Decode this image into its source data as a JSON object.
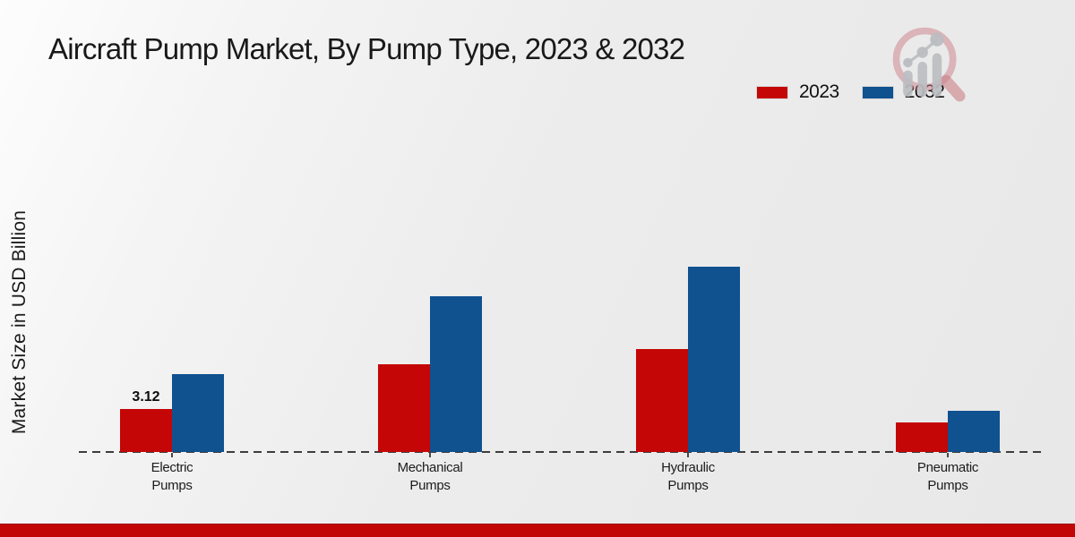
{
  "title": "Aircraft Pump Market, By Pump Type, 2023 & 2032",
  "y_axis_label": "Market Size in USD Billion",
  "legend": {
    "items": [
      {
        "label": "2023",
        "color": "#c40606"
      },
      {
        "label": "2032",
        "color": "#10518f"
      }
    ],
    "position": "top-right"
  },
  "icons": {
    "logo": "magnifier-bar-chart-watermark-logo"
  },
  "colors": {
    "series_2023": "#c40606",
    "series_2032": "#10518f",
    "baseline": "#3d3d3d",
    "background": "#ececec",
    "footer_bar": "#c20606"
  },
  "footer": {
    "bar_color": "#c20606"
  },
  "chart_data": {
    "type": "bar",
    "title": "Aircraft Pump Market, By Pump Type, 2023 & 2032",
    "xlabel": "",
    "ylabel": "Market Size in USD Billion",
    "categories": [
      "Electric Pumps",
      "Mechanical Pumps",
      "Hydraulic Pumps",
      "Pneumatic Pumps"
    ],
    "series": [
      {
        "name": "2023",
        "color": "#c40606",
        "values": [
          3.12,
          6.37,
          7.48,
          2.15
        ]
      },
      {
        "name": "2032",
        "color": "#10518f",
        "values": [
          5.66,
          11.31,
          13.46,
          2.99
        ]
      }
    ],
    "ylim": [
      0,
      14.5
    ],
    "grid": false,
    "axis_line_style": "dashed",
    "legend_position": "top-right",
    "annotations": [
      {
        "series": "2023",
        "category": "Electric Pumps",
        "text": "3.12"
      }
    ]
  }
}
